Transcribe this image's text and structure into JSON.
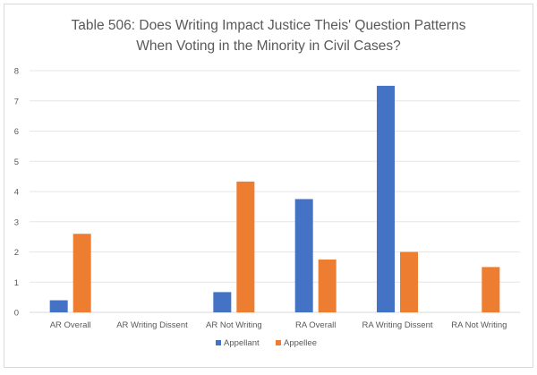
{
  "chart_data": {
    "type": "bar",
    "title_line1": "Table 506: Does Writing Impact Justice Theis' Question Patterns",
    "title_line2": "When Voting in the Minority in Civil Cases?",
    "categories": [
      "AR Overall",
      "AR Writing Dissent",
      "AR Not Writing",
      "RA Overall",
      "RA Writing Dissent",
      "RA Not Writing"
    ],
    "series": [
      {
        "name": "Appellant",
        "color": "#4472c4",
        "values": [
          0.4,
          0,
          0.67,
          3.75,
          7.5,
          0
        ]
      },
      {
        "name": "Appellee",
        "color": "#ed7d31",
        "values": [
          2.6,
          0,
          4.33,
          1.75,
          2.0,
          1.5
        ]
      }
    ],
    "ylim": [
      0,
      8
    ],
    "yticks": [
      "0",
      "1",
      "2",
      "3",
      "4",
      "5",
      "6",
      "7",
      "8"
    ],
    "grid": true,
    "legend_position": "bottom"
  }
}
